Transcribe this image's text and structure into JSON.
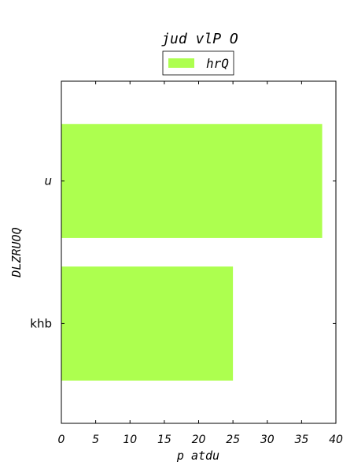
{
  "chart_data": {
    "type": "bar",
    "orientation": "horizontal",
    "title": "jud vlP O",
    "xlabel": "p atdu",
    "ylabel": "DLZRUOQ",
    "categories": [
      "khb",
      "u"
    ],
    "series": [
      {
        "name": "hrQ",
        "values": [
          25,
          38
        ],
        "color": "#adff4f"
      }
    ],
    "xlim": [
      0,
      40
    ],
    "xticks": [
      0,
      5,
      10,
      15,
      20,
      25,
      30,
      35,
      40
    ],
    "xtick_labels": [
      "0",
      "5",
      "10",
      "15",
      "20",
      "25",
      "30",
      "35",
      "40"
    ],
    "grid": false,
    "legend_position": "top-center"
  }
}
